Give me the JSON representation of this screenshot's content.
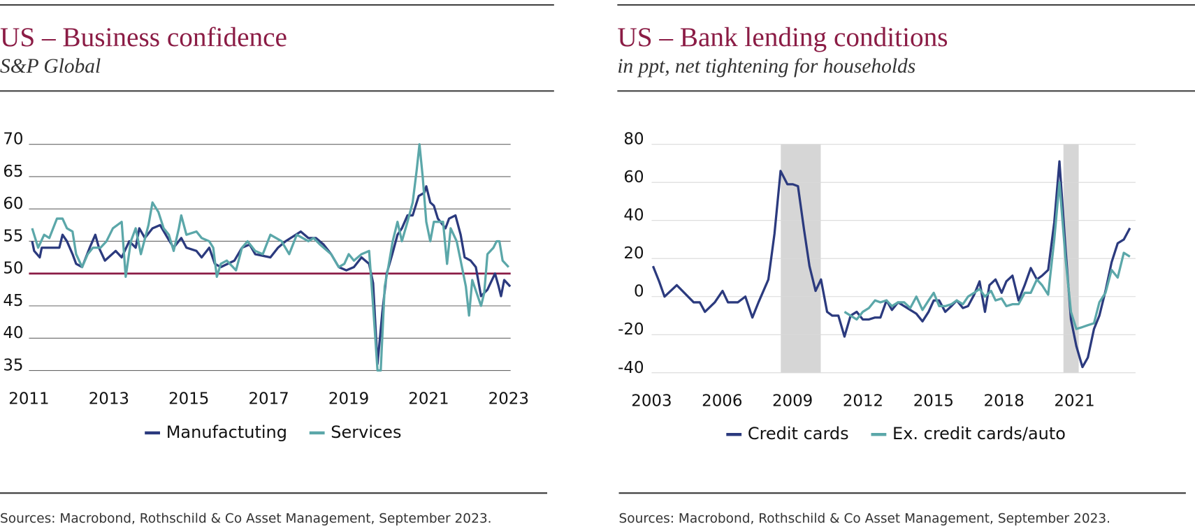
{
  "chart_data": [
    {
      "type": "line",
      "title": "US – Business confidence",
      "subtitle": "S&P Global",
      "source": "Sources: Macrobond, Rothschild & Co Asset Management, September 2023.",
      "xlim": [
        2011,
        2023.05
      ],
      "xticks": [
        2011,
        2013,
        2015,
        2017,
        2019,
        2021,
        2023
      ],
      "ylim": [
        35,
        70
      ],
      "yticks": [
        35,
        40,
        45,
        50,
        55,
        60,
        65,
        70
      ],
      "grid": true,
      "reference_line": 50,
      "reference_color": "#8b1c45",
      "series": [
        {
          "name": "Manufactuting",
          "color": "#2b3a7e",
          "x": [
            2011.08,
            2011.13,
            2011.27,
            2011.32,
            2011.61,
            2011.76,
            2011.84,
            2011.95,
            2012.09,
            2012.18,
            2012.33,
            2012.52,
            2012.66,
            2012.75,
            2012.9,
            2013.17,
            2013.32,
            2013.51,
            2013.67,
            2013.76,
            2013.9,
            2014.09,
            2014.28,
            2014.47,
            2014.62,
            2014.81,
            2014.94,
            2015.19,
            2015.32,
            2015.51,
            2015.65,
            2015.8,
            2016.14,
            2016.33,
            2016.52,
            2016.66,
            2017.04,
            2017.23,
            2017.42,
            2017.8,
            2017.99,
            2018.18,
            2018.37,
            2018.56,
            2018.75,
            2018.94,
            2019.13,
            2019.32,
            2019.51,
            2019.61,
            2019.72,
            2019.84,
            2019.95,
            2020.09,
            2020.22,
            2020.33,
            2020.47,
            2020.6,
            2020.75,
            2020.89,
            2020.94,
            2021.04,
            2021.13,
            2021.23,
            2021.42,
            2021.51,
            2021.67,
            2021.8,
            2021.9,
            2022.05,
            2022.18,
            2022.31,
            2022.47,
            2022.66,
            2022.75,
            2022.81,
            2022.89,
            2023.04
          ],
          "values": [
            55,
            53.5,
            52.5,
            54,
            54,
            54,
            56,
            55,
            53,
            51.5,
            51,
            54,
            56,
            54,
            52,
            53.5,
            52.5,
            55,
            54,
            57,
            55.5,
            57,
            57.5,
            55.5,
            54,
            55.5,
            54,
            53.5,
            52.5,
            54,
            51.5,
            51,
            52,
            54,
            54.5,
            53,
            52.5,
            54,
            55,
            56.5,
            55.5,
            55.5,
            54.5,
            53,
            51,
            50.5,
            51,
            52.5,
            51.5,
            48.5,
            36,
            44,
            50,
            53,
            56,
            57,
            59,
            59,
            62,
            62.5,
            63.5,
            61,
            60.5,
            58.5,
            57,
            58.5,
            59,
            56,
            52.5,
            52,
            51,
            46.5,
            47.5,
            50,
            48,
            46.5,
            49,
            48
          ]
        },
        {
          "name": "Services",
          "color": "#5ba7a9",
          "x": [
            2011.08,
            2011.23,
            2011.38,
            2011.51,
            2011.7,
            2011.84,
            2011.95,
            2012.09,
            2012.18,
            2012.33,
            2012.47,
            2012.6,
            2012.79,
            2012.94,
            2013.1,
            2013.32,
            2013.42,
            2013.55,
            2013.67,
            2013.8,
            2013.99,
            2014.09,
            2014.24,
            2014.37,
            2014.5,
            2014.62,
            2014.75,
            2014.81,
            2014.94,
            2015.19,
            2015.32,
            2015.51,
            2015.61,
            2015.7,
            2015.8,
            2015.95,
            2016.18,
            2016.33,
            2016.47,
            2016.66,
            2016.85,
            2017.04,
            2017.32,
            2017.51,
            2017.7,
            2017.99,
            2018.12,
            2018.28,
            2018.56,
            2018.75,
            2018.89,
            2019.0,
            2019.13,
            2019.32,
            2019.51,
            2019.61,
            2019.72,
            2019.8,
            2019.9,
            2019.99,
            2020.1,
            2020.22,
            2020.33,
            2020.47,
            2020.6,
            2020.7,
            2020.77,
            2020.85,
            2020.94,
            2021.04,
            2021.13,
            2021.36,
            2021.46,
            2021.55,
            2021.7,
            2021.8,
            2021.93,
            2022.01,
            2022.09,
            2022.2,
            2022.31,
            2022.39,
            2022.47,
            2022.62,
            2022.7,
            2022.77,
            2022.85,
            2023.0
          ],
          "values": [
            57,
            54,
            56,
            55.5,
            58.5,
            58.5,
            57,
            56.5,
            53,
            51,
            53,
            54,
            54,
            55,
            57,
            58,
            49.5,
            55,
            57,
            53,
            57.5,
            61,
            59.5,
            57,
            56,
            53.5,
            57,
            59,
            56,
            56.5,
            55.5,
            55,
            54,
            49.5,
            51.5,
            52,
            50.5,
            54,
            55,
            53.5,
            53,
            56,
            55,
            53,
            56,
            55,
            55.5,
            54.5,
            53,
            51,
            51.5,
            53,
            52,
            53,
            53.5,
            45,
            35,
            35,
            48,
            51,
            55,
            58,
            55,
            58,
            61,
            66,
            70,
            65,
            58,
            55,
            58,
            58,
            51.5,
            57,
            55,
            52,
            48,
            43.5,
            49,
            47,
            45,
            47,
            53,
            54,
            55,
            55,
            52,
            51
          ]
        }
      ]
    },
    {
      "type": "line",
      "title": "US – Bank lending conditions",
      "subtitle": "in ppt, net tightening for households",
      "source": "Sources: Macrobond, Rothschild & Co Asset Management, September 2023.",
      "xlim": [
        2003,
        2023.6
      ],
      "xticks": [
        2003,
        2006,
        2009,
        2012,
        2015,
        2018,
        2021
      ],
      "ylim": [
        -40,
        80
      ],
      "yticks": [
        -40,
        -20,
        0,
        20,
        40,
        60,
        80
      ],
      "grid": true,
      "shaded_periods": [
        [
          2008.5,
          2010.2
        ],
        [
          2020.53,
          2021.18
        ]
      ],
      "shade_color": "#d6d6d6",
      "series": [
        {
          "name": "Credit cards",
          "color": "#2b3a7e",
          "x": [
            2003.06,
            2003.32,
            2003.55,
            2004.07,
            2004.79,
            2005.05,
            2005.27,
            2005.69,
            2006.02,
            2006.25,
            2006.67,
            2006.99,
            2007.29,
            2007.55,
            2007.97,
            2008.23,
            2008.49,
            2008.78,
            2009.01,
            2009.23,
            2009.49,
            2009.72,
            2009.98,
            2010.21,
            2010.47,
            2010.69,
            2010.95,
            2011.21,
            2011.47,
            2011.73,
            2011.99,
            2012.25,
            2012.51,
            2012.74,
            2013.0,
            2013.23,
            2013.49,
            2013.75,
            2014.01,
            2014.27,
            2014.53,
            2014.79,
            2015.01,
            2015.24,
            2015.5,
            2015.76,
            2015.99,
            2016.25,
            2016.47,
            2016.73,
            2016.96,
            2017.19,
            2017.38,
            2017.64,
            2017.9,
            2018.1,
            2018.36,
            2018.62,
            2018.88,
            2019.14,
            2019.4,
            2019.62,
            2019.88,
            2020.14,
            2020.36,
            2020.62,
            2020.85,
            2021.08,
            2021.34,
            2021.57,
            2021.83,
            2022.06,
            2022.32,
            2022.58,
            2022.84,
            2023.1,
            2023.36
          ],
          "values": [
            16,
            8,
            0,
            6,
            -3,
            -3,
            -8,
            -3,
            3,
            -3,
            -3,
            0,
            -11,
            -3,
            9,
            33,
            66,
            59,
            59,
            58,
            35,
            16,
            3,
            9,
            -8,
            -10,
            -10,
            -21,
            -10,
            -8,
            -12,
            -12,
            -11,
            -11,
            -2,
            -7,
            -3,
            -5,
            -7,
            -9,
            -13,
            -8,
            -2,
            -2,
            -8,
            -5,
            -2,
            -6,
            -5,
            1,
            8,
            -8,
            6,
            9,
            2,
            8,
            11,
            -2,
            6,
            15,
            9,
            11,
            14,
            39,
            71,
            25,
            -12,
            -26,
            -37,
            -32,
            -17,
            -10,
            3,
            18,
            28,
            30,
            36
          ]
        },
        {
          "name": "Ex. credit cards/auto",
          "color": "#5ba7a9",
          "x": [
            2011.21,
            2011.47,
            2011.73,
            2011.99,
            2012.25,
            2012.51,
            2012.74,
            2013.0,
            2013.23,
            2013.49,
            2013.75,
            2014.01,
            2014.27,
            2014.53,
            2014.79,
            2015.01,
            2015.24,
            2015.5,
            2015.76,
            2015.99,
            2016.25,
            2016.47,
            2016.73,
            2016.96,
            2017.19,
            2017.45,
            2017.64,
            2017.9,
            2018.1,
            2018.36,
            2018.62,
            2018.88,
            2019.14,
            2019.4,
            2019.62,
            2019.88,
            2020.14,
            2020.36,
            2020.62,
            2020.85,
            2021.08,
            2021.34,
            2021.57,
            2021.83,
            2022.06,
            2022.32,
            2022.58,
            2022.84,
            2023.1,
            2023.36
          ],
          "values": [
            -8,
            -10,
            -12,
            -8,
            -6,
            -2,
            -3,
            -2,
            -5,
            -3,
            -3,
            -6,
            0,
            -7,
            -2,
            2,
            -5,
            -5,
            -4,
            -2,
            -4,
            0,
            2,
            4,
            0,
            3,
            -2,
            -1,
            -5,
            -4,
            -4,
            2,
            2,
            9,
            6,
            1,
            30,
            60,
            20,
            -8,
            -17,
            -16,
            -15,
            -14,
            -3,
            2,
            14,
            10,
            23,
            21
          ]
        }
      ]
    }
  ]
}
